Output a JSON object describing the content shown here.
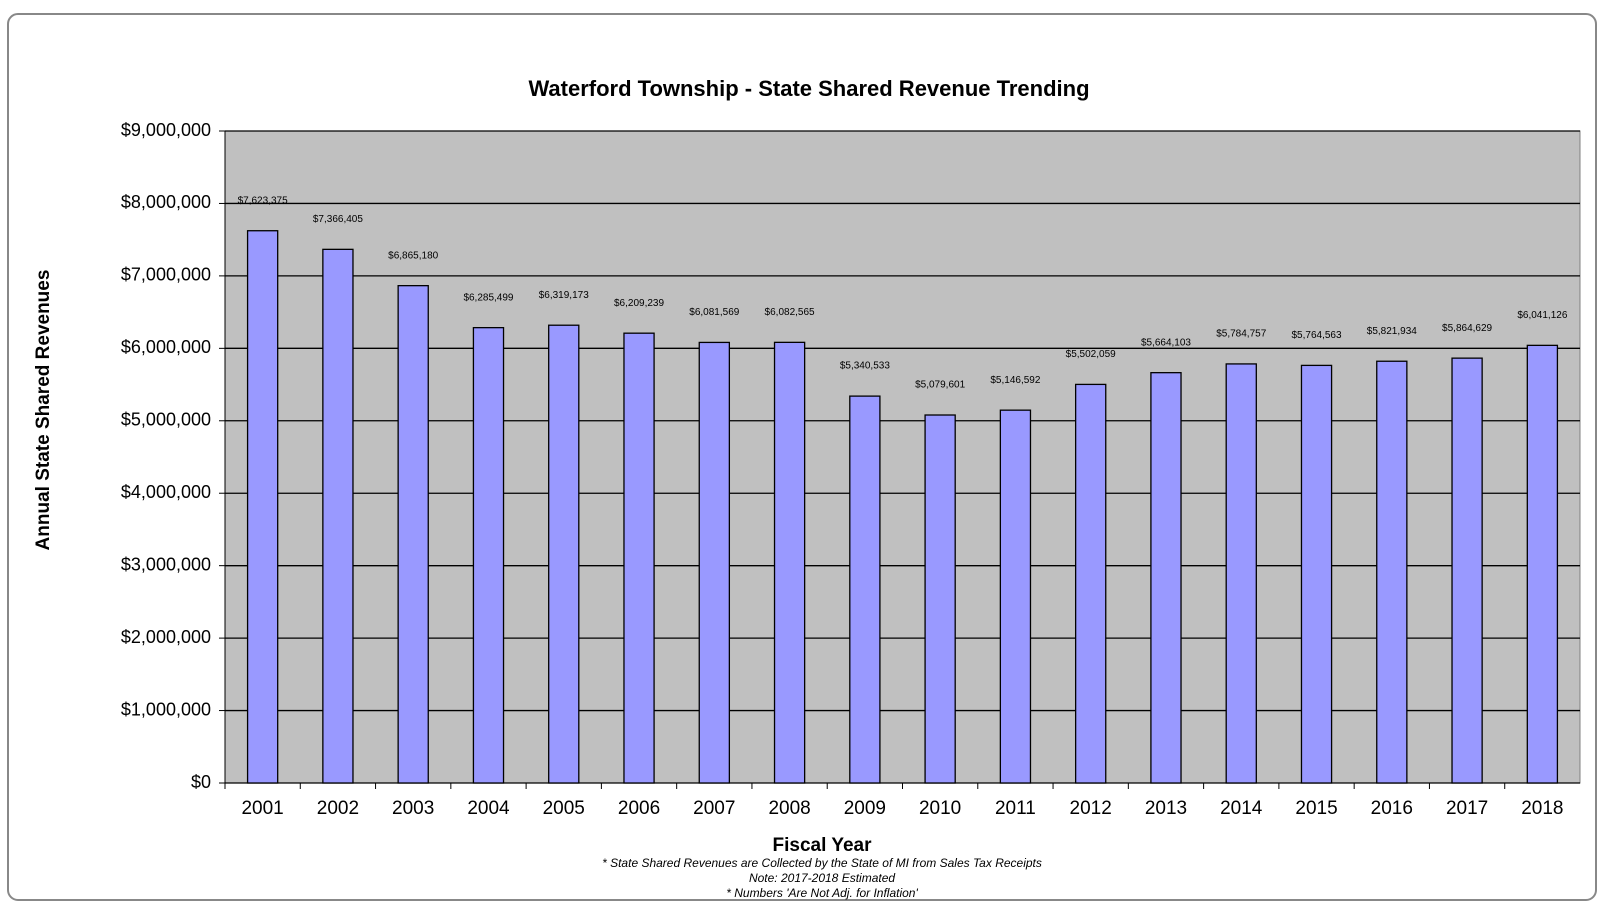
{
  "chart_data": {
    "type": "bar",
    "title": "Waterford Township - State Shared Revenue Trending",
    "x_label": "Fiscal Year",
    "y_label": "Annual State Shared Revenues",
    "notes": [
      "* State Shared Revenues are Collected by the State of MI from Sales Tax Receipts",
      "Note: 2017-2018 Estimated",
      "* Numbers 'Are Not Adj. for Inflation'"
    ],
    "categories": [
      "2001",
      "2002",
      "2003",
      "2004",
      "2005",
      "2006",
      "2007",
      "2008",
      "2009",
      "2010",
      "2011",
      "2012",
      "2013",
      "2014",
      "2015",
      "2016",
      "2017",
      "2018"
    ],
    "values": [
      7623375,
      7366405,
      6865180,
      6285499,
      6319173,
      6209239,
      6081569,
      6082565,
      5340533,
      5079601,
      5146592,
      5502059,
      5664103,
      5784757,
      5764563,
      5821934,
      5864629,
      6041126
    ],
    "value_labels": [
      "$7,623,375",
      "$7,366,405",
      "$6,865,180",
      "$6,285,499",
      "$6,319,173",
      "$6,209,239",
      "$6,081,569",
      "$6,082,565",
      "$5,340,533",
      "$5,079,601",
      "$5,146,592",
      "$5,502,059",
      "$5,664,103",
      "$5,784,757",
      "$5,764,563",
      "$5,821,934",
      "$5,864,629",
      "$6,041,126"
    ],
    "color": "#9999ff",
    "ylim": [
      0,
      9000000
    ],
    "yticks": [
      {
        "value": 0,
        "label": "$0"
      },
      {
        "value": 1000000,
        "label": "$1,000,000"
      },
      {
        "value": 2000000,
        "label": "$2,000,000"
      },
      {
        "value": 3000000,
        "label": "$3,000,000"
      },
      {
        "value": 4000000,
        "label": "$4,000,000"
      },
      {
        "value": 5000000,
        "label": "$5,000,000"
      },
      {
        "value": 6000000,
        "label": "$6,000,000"
      },
      {
        "value": 7000000,
        "label": "$7,000,000"
      },
      {
        "value": 8000000,
        "label": "$8,000,000"
      },
      {
        "value": 9000000,
        "label": "$9,000,000"
      }
    ],
    "grid": true
  }
}
